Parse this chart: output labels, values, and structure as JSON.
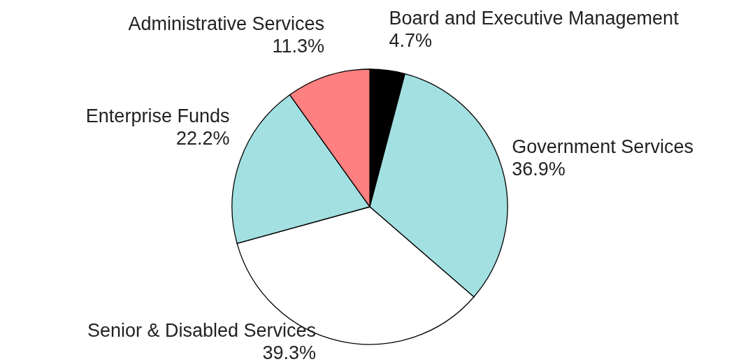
{
  "chart_data": {
    "type": "pie",
    "categories": [
      "Board and Executive Management",
      "Government Services",
      "Senior & Disabled Services",
      "Enterprise Funds",
      "Administrative Services"
    ],
    "values": [
      4.7,
      36.9,
      39.3,
      22.2,
      11.3
    ],
    "value_labels": [
      "4.7%",
      "36.9%",
      "39.3%",
      "22.2%",
      "11.3%"
    ],
    "colors": [
      "#000000",
      "#a3e0e1",
      "#ffffff",
      "#a3e0e1",
      "#ff8080"
    ]
  }
}
